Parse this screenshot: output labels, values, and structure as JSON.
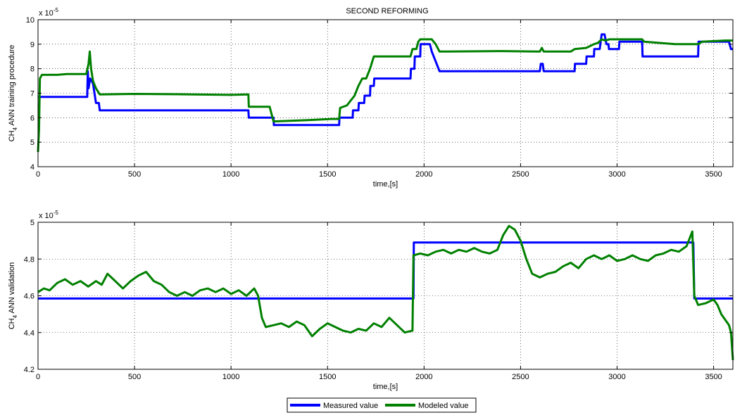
{
  "chart_data": [
    {
      "type": "line",
      "title": "SECOND REFORMING",
      "xlabel": "time,[s]",
      "ylabel_prefix": "CH",
      "ylabel_sub": "4",
      "ylabel_suffix": " ANN training procedure",
      "exponent_label_base": "x 10",
      "exponent_label_power": "-5",
      "xlim": [
        0,
        3600
      ],
      "ylim": [
        4,
        10
      ],
      "xticks": [
        0,
        500,
        1000,
        1500,
        2000,
        2500,
        3000,
        3500
      ],
      "yticks": [
        4,
        5,
        6,
        7,
        8,
        9,
        10
      ],
      "xtick_labels": [
        "0",
        "500",
        "1000",
        "1500",
        "2000",
        "2500",
        "3000",
        "3500"
      ],
      "ytick_labels": [
        "4",
        "5",
        "6",
        "7",
        "8",
        "9",
        "10"
      ],
      "grid": true,
      "series": [
        {
          "name": "Measured value",
          "color": "#0000ff",
          "points": [
            [
              0,
              6.85
            ],
            [
              255,
              6.85
            ],
            [
              258,
              7.9
            ],
            [
              262,
              7.2
            ],
            [
              270,
              7.6
            ],
            [
              285,
              7.4
            ],
            [
              300,
              6.6
            ],
            [
              315,
              6.6
            ],
            [
              320,
              6.3
            ],
            [
              1090,
              6.3
            ],
            [
              1092,
              6.0
            ],
            [
              1220,
              6.0
            ],
            [
              1222,
              5.7
            ],
            [
              1560,
              5.7
            ],
            [
              1562,
              6.0
            ],
            [
              1630,
              6.0
            ],
            [
              1632,
              6.3
            ],
            [
              1660,
              6.3
            ],
            [
              1662,
              6.6
            ],
            [
              1690,
              6.6
            ],
            [
              1692,
              6.9
            ],
            [
              1720,
              6.9
            ],
            [
              1722,
              7.3
            ],
            [
              1740,
              7.3
            ],
            [
              1742,
              7.6
            ],
            [
              1930,
              7.6
            ],
            [
              1932,
              8.0
            ],
            [
              1950,
              8.0
            ],
            [
              1952,
              8.5
            ],
            [
              1980,
              8.5
            ],
            [
              1982,
              9.0
            ],
            [
              2030,
              9.0
            ],
            [
              2040,
              8.7
            ],
            [
              2060,
              8.3
            ],
            [
              2080,
              7.9
            ],
            [
              2600,
              7.9
            ],
            [
              2605,
              8.2
            ],
            [
              2615,
              8.2
            ],
            [
              2620,
              7.9
            ],
            [
              2780,
              7.9
            ],
            [
              2782,
              8.2
            ],
            [
              2840,
              8.2
            ],
            [
              2842,
              8.5
            ],
            [
              2880,
              8.5
            ],
            [
              2882,
              8.8
            ],
            [
              2910,
              8.8
            ],
            [
              2920,
              9.4
            ],
            [
              2935,
              9.4
            ],
            [
              2945,
              9.0
            ],
            [
              2955,
              9.0
            ],
            [
              2958,
              8.8
            ],
            [
              3010,
              8.8
            ],
            [
              3012,
              9.1
            ],
            [
              3130,
              9.1
            ],
            [
              3132,
              8.5
            ],
            [
              3420,
              8.5
            ],
            [
              3422,
              9.1
            ],
            [
              3580,
              9.1
            ],
            [
              3590,
              8.8
            ],
            [
              3600,
              8.8
            ]
          ]
        },
        {
          "name": "Modeled value",
          "color": "#008000",
          "points": [
            [
              0,
              4.6
            ],
            [
              5,
              5.5
            ],
            [
              10,
              7.6
            ],
            [
              20,
              7.75
            ],
            [
              100,
              7.75
            ],
            [
              150,
              7.78
            ],
            [
              250,
              7.78
            ],
            [
              262,
              8.2
            ],
            [
              268,
              8.7
            ],
            [
              275,
              8.0
            ],
            [
              285,
              7.5
            ],
            [
              300,
              7.2
            ],
            [
              320,
              6.95
            ],
            [
              500,
              6.97
            ],
            [
              800,
              6.95
            ],
            [
              1000,
              6.93
            ],
            [
              1090,
              6.95
            ],
            [
              1092,
              6.45
            ],
            [
              1200,
              6.45
            ],
            [
              1220,
              5.85
            ],
            [
              1400,
              5.9
            ],
            [
              1520,
              5.95
            ],
            [
              1560,
              5.95
            ],
            [
              1565,
              6.4
            ],
            [
              1600,
              6.5
            ],
            [
              1640,
              6.9
            ],
            [
              1660,
              7.3
            ],
            [
              1680,
              7.6
            ],
            [
              1700,
              7.6
            ],
            [
              1720,
              8.0
            ],
            [
              1740,
              8.5
            ],
            [
              1900,
              8.5
            ],
            [
              1930,
              8.5
            ],
            [
              1940,
              8.8
            ],
            [
              1960,
              8.8
            ],
            [
              1970,
              9.1
            ],
            [
              1980,
              9.2
            ],
            [
              2040,
              9.2
            ],
            [
              2060,
              9.0
            ],
            [
              2080,
              8.7
            ],
            [
              2400,
              8.72
            ],
            [
              2600,
              8.7
            ],
            [
              2610,
              8.85
            ],
            [
              2620,
              8.7
            ],
            [
              2760,
              8.7
            ],
            [
              2780,
              8.8
            ],
            [
              2840,
              8.85
            ],
            [
              2880,
              9.0
            ],
            [
              2900,
              9.05
            ],
            [
              2920,
              9.2
            ],
            [
              2940,
              9.15
            ],
            [
              2960,
              9.2
            ],
            [
              3130,
              9.2
            ],
            [
              3140,
              9.1
            ],
            [
              3300,
              9.0
            ],
            [
              3420,
              9.0
            ],
            [
              3440,
              9.1
            ],
            [
              3560,
              9.15
            ],
            [
              3600,
              9.15
            ]
          ]
        }
      ]
    },
    {
      "type": "line",
      "title": "",
      "xlabel": "time,[s]",
      "ylabel_prefix": "CH",
      "ylabel_sub": "4",
      "ylabel_suffix": " ANN validation",
      "exponent_label_base": "x 10",
      "exponent_label_power": "-5",
      "xlim": [
        0,
        3600
      ],
      "ylim": [
        4.2,
        5.0
      ],
      "xticks": [
        0,
        500,
        1000,
        1500,
        2000,
        2500,
        3000,
        3500
      ],
      "yticks": [
        4.2,
        4.4,
        4.6,
        4.8,
        5.0
      ],
      "xtick_labels": [
        "0",
        "500",
        "1000",
        "1500",
        "2000",
        "2500",
        "3000",
        "3500"
      ],
      "ytick_labels": [
        "4.2",
        "4.4",
        "4.6",
        "4.8",
        "5"
      ],
      "grid": true,
      "series": [
        {
          "name": "Measured value",
          "color": "#0000ff",
          "points": [
            [
              0,
              4.585
            ],
            [
              1945,
              4.585
            ],
            [
              1947,
              4.89
            ],
            [
              3395,
              4.89
            ],
            [
              3400,
              4.585
            ],
            [
              3600,
              4.585
            ]
          ]
        },
        {
          "name": "Modeled value",
          "color": "#008000",
          "points": [
            [
              0,
              4.62
            ],
            [
              30,
              4.64
            ],
            [
              60,
              4.63
            ],
            [
              100,
              4.67
            ],
            [
              140,
              4.69
            ],
            [
              180,
              4.66
            ],
            [
              220,
              4.68
            ],
            [
              260,
              4.65
            ],
            [
              300,
              4.68
            ],
            [
              330,
              4.66
            ],
            [
              360,
              4.72
            ],
            [
              400,
              4.68
            ],
            [
              440,
              4.64
            ],
            [
              480,
              4.68
            ],
            [
              520,
              4.71
            ],
            [
              560,
              4.73
            ],
            [
              600,
              4.68
            ],
            [
              640,
              4.66
            ],
            [
              680,
              4.62
            ],
            [
              720,
              4.6
            ],
            [
              760,
              4.62
            ],
            [
              800,
              4.6
            ],
            [
              840,
              4.63
            ],
            [
              880,
              4.64
            ],
            [
              920,
              4.62
            ],
            [
              960,
              4.64
            ],
            [
              1000,
              4.61
            ],
            [
              1040,
              4.63
            ],
            [
              1080,
              4.6
            ],
            [
              1120,
              4.64
            ],
            [
              1140,
              4.6
            ],
            [
              1160,
              4.48
            ],
            [
              1180,
              4.43
            ],
            [
              1220,
              4.44
            ],
            [
              1260,
              4.45
            ],
            [
              1300,
              4.43
            ],
            [
              1340,
              4.46
            ],
            [
              1380,
              4.44
            ],
            [
              1420,
              4.38
            ],
            [
              1460,
              4.42
            ],
            [
              1500,
              4.45
            ],
            [
              1540,
              4.43
            ],
            [
              1580,
              4.41
            ],
            [
              1620,
              4.4
            ],
            [
              1660,
              4.42
            ],
            [
              1700,
              4.41
            ],
            [
              1740,
              4.45
            ],
            [
              1780,
              4.43
            ],
            [
              1820,
              4.48
            ],
            [
              1860,
              4.44
            ],
            [
              1900,
              4.4
            ],
            [
              1940,
              4.41
            ],
            [
              1945,
              4.82
            ],
            [
              1980,
              4.83
            ],
            [
              2020,
              4.82
            ],
            [
              2060,
              4.84
            ],
            [
              2100,
              4.85
            ],
            [
              2140,
              4.83
            ],
            [
              2180,
              4.85
            ],
            [
              2220,
              4.84
            ],
            [
              2260,
              4.86
            ],
            [
              2300,
              4.84
            ],
            [
              2340,
              4.83
            ],
            [
              2380,
              4.85
            ],
            [
              2410,
              4.93
            ],
            [
              2440,
              4.98
            ],
            [
              2470,
              4.96
            ],
            [
              2500,
              4.9
            ],
            [
              2530,
              4.8
            ],
            [
              2560,
              4.72
            ],
            [
              2600,
              4.7
            ],
            [
              2640,
              4.72
            ],
            [
              2680,
              4.73
            ],
            [
              2720,
              4.76
            ],
            [
              2760,
              4.78
            ],
            [
              2800,
              4.75
            ],
            [
              2840,
              4.8
            ],
            [
              2880,
              4.82
            ],
            [
              2920,
              4.8
            ],
            [
              2960,
              4.82
            ],
            [
              3000,
              4.79
            ],
            [
              3040,
              4.8
            ],
            [
              3080,
              4.82
            ],
            [
              3120,
              4.8
            ],
            [
              3160,
              4.79
            ],
            [
              3200,
              4.82
            ],
            [
              3240,
              4.83
            ],
            [
              3280,
              4.85
            ],
            [
              3320,
              4.84
            ],
            [
              3360,
              4.87
            ],
            [
              3390,
              4.95
            ],
            [
              3400,
              4.6
            ],
            [
              3420,
              4.55
            ],
            [
              3460,
              4.56
            ],
            [
              3500,
              4.58
            ],
            [
              3520,
              4.55
            ],
            [
              3540,
              4.5
            ],
            [
              3560,
              4.47
            ],
            [
              3580,
              4.44
            ],
            [
              3590,
              4.4
            ],
            [
              3600,
              4.25
            ]
          ]
        }
      ]
    }
  ],
  "legend": {
    "placement": "bottom-center",
    "items": [
      {
        "label": "Measured value",
        "color": "#0000ff"
      },
      {
        "label": "Modeled value",
        "color": "#008000"
      }
    ]
  }
}
